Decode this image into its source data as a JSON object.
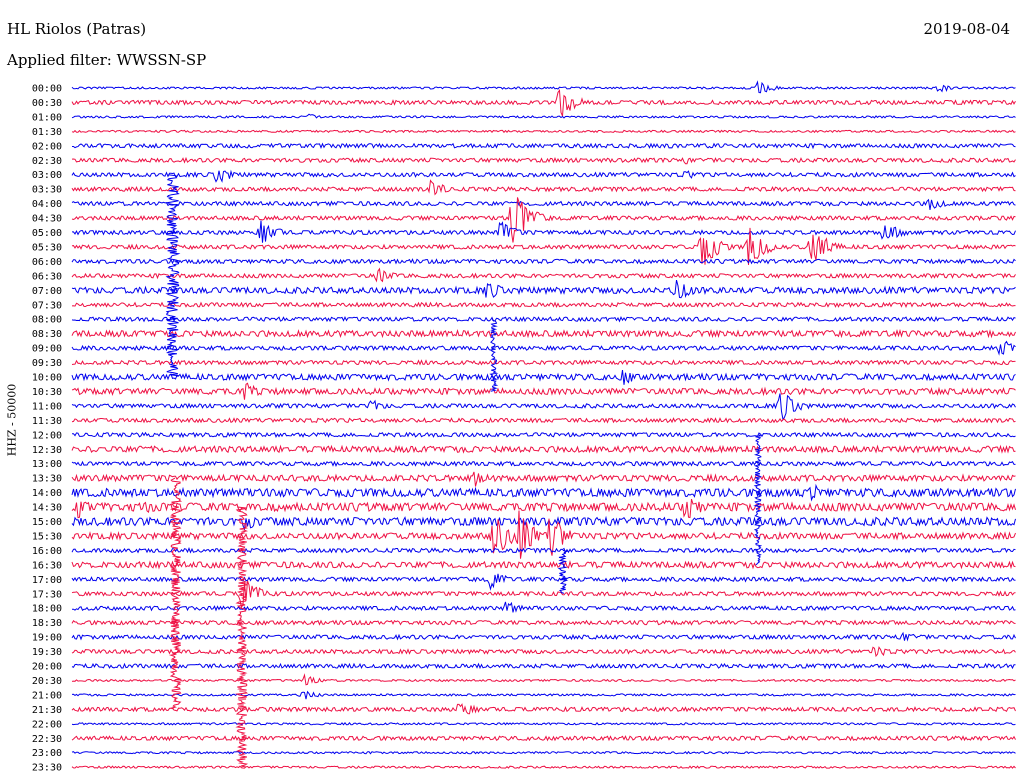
{
  "header": {
    "station": "HL Riolos (Patras)",
    "date": "2019-08-04",
    "filter": "Applied filter: WWSSN-SP"
  },
  "chart_data": {
    "type": "line",
    "title": "HL Riolos (Patras)",
    "subtitle": "Applied filter: WWSSN-SP",
    "ylabel": "HHZ - 50000",
    "row_labels": [
      "00:00",
      "00:30",
      "01:00",
      "01:30",
      "02:00",
      "02:30",
      "03:00",
      "03:30",
      "04:00",
      "04:30",
      "05:00",
      "05:30",
      "06:00",
      "06:30",
      "07:00",
      "07:30",
      "08:00",
      "08:30",
      "09:00",
      "09:30",
      "10:00",
      "10:30",
      "11:00",
      "11:30",
      "12:00",
      "12:30",
      "13:00",
      "13:30",
      "14:00",
      "14:30",
      "15:00",
      "15:30",
      "16:00",
      "16:30",
      "17:00",
      "17:30",
      "18:00",
      "18:30",
      "19:00",
      "19:30",
      "20:00",
      "20:30",
      "21:00",
      "21:30",
      "22:00",
      "22:30",
      "23:00",
      "23:30"
    ],
    "x_range_minutes": [
      0,
      30
    ],
    "colors": {
      "even_rows": "#0000ee",
      "odd_rows": "#ee1144"
    },
    "grid": false,
    "noise_amplitude": [
      1,
      2,
      1,
      1,
      2,
      2,
      2,
      2,
      2,
      2,
      2,
      2,
      2,
      2,
      3,
      2,
      2,
      3,
      2,
      2,
      3,
      3,
      2,
      2,
      2,
      3,
      2,
      3,
      4,
      4,
      4,
      3,
      2,
      3,
      2,
      2,
      2,
      2,
      2,
      2,
      2,
      1,
      1,
      2,
      1,
      2,
      1,
      1
    ],
    "events": [
      {
        "row": 0,
        "minute": 21.8,
        "amp": 7
      },
      {
        "row": 0,
        "minute": 27.5,
        "amp": 5
      },
      {
        "row": 1,
        "minute": 15.5,
        "amp": 18
      },
      {
        "row": 2,
        "minute": 7.5,
        "amp": 3
      },
      {
        "row": 5,
        "minute": 19.5,
        "amp": 4
      },
      {
        "row": 6,
        "minute": 4.6,
        "amp": 10
      },
      {
        "row": 6,
        "minute": 19.5,
        "amp": 5
      },
      {
        "row": 7,
        "minute": 11.4,
        "amp": 10
      },
      {
        "row": 8,
        "minute": 27.2,
        "amp": 9
      },
      {
        "row": 9,
        "minute": 14.0,
        "amp": 35
      },
      {
        "row": 10,
        "minute": 6.0,
        "amp": 14
      },
      {
        "row": 10,
        "minute": 13.6,
        "amp": 12
      },
      {
        "row": 10,
        "minute": 25.8,
        "amp": 12
      },
      {
        "row": 11,
        "minute": 20.0,
        "amp": 24
      },
      {
        "row": 11,
        "minute": 21.5,
        "amp": 24
      },
      {
        "row": 11,
        "minute": 23.5,
        "amp": 24
      },
      {
        "row": 13,
        "minute": 9.7,
        "amp": 9
      },
      {
        "row": 14,
        "minute": 13.2,
        "amp": 11
      },
      {
        "row": 14,
        "minute": 19.2,
        "amp": 14
      },
      {
        "row": 18,
        "minute": 29.5,
        "amp": 12
      },
      {
        "row": 20,
        "minute": 17.5,
        "amp": 9
      },
      {
        "row": 21,
        "minute": 5.5,
        "amp": 10
      },
      {
        "row": 22,
        "minute": 9.5,
        "amp": 7
      },
      {
        "row": 22,
        "minute": 22.5,
        "amp": 18
      },
      {
        "row": 27,
        "minute": 12.8,
        "amp": 9
      },
      {
        "row": 28,
        "minute": 23.5,
        "amp": 10
      },
      {
        "row": 29,
        "minute": 0.2,
        "amp": 12
      },
      {
        "row": 29,
        "minute": 19.5,
        "amp": 17
      },
      {
        "row": 29,
        "minute": 2.3,
        "amp": 8
      },
      {
        "row": 30,
        "minute": 5.5,
        "amp": 10
      },
      {
        "row": 31,
        "minute": 13.4,
        "amp": 26
      },
      {
        "row": 31,
        "minute": 14.2,
        "amp": 26
      },
      {
        "row": 31,
        "minute": 15.2,
        "amp": 26
      },
      {
        "row": 34,
        "minute": 13.3,
        "amp": 10
      },
      {
        "row": 35,
        "minute": 5.4,
        "amp": 20
      },
      {
        "row": 36,
        "minute": 13.8,
        "amp": 8
      },
      {
        "row": 38,
        "minute": 26.4,
        "amp": 6
      },
      {
        "row": 39,
        "minute": 25.5,
        "amp": 7
      },
      {
        "row": 43,
        "minute": 12.3,
        "amp": 10
      },
      {
        "row": 41,
        "minute": 7.4,
        "amp": 6
      },
      {
        "row": 42,
        "minute": 7.3,
        "amp": 6
      }
    ],
    "long_spikes": [
      {
        "start_row": 6,
        "end_row": 20,
        "minute": 3.2,
        "amp": 6
      },
      {
        "start_row": 27,
        "end_row": 43,
        "minute": 3.3,
        "amp": 5
      },
      {
        "start_row": 29,
        "end_row": 47,
        "minute": 5.4,
        "amp": 5
      },
      {
        "start_row": 16,
        "end_row": 21,
        "minute": 13.4,
        "amp": 3
      },
      {
        "start_row": 24,
        "end_row": 33,
        "minute": 21.8,
        "amp": 3
      },
      {
        "start_row": 32,
        "end_row": 35,
        "minute": 15.6,
        "amp": 4
      }
    ]
  }
}
